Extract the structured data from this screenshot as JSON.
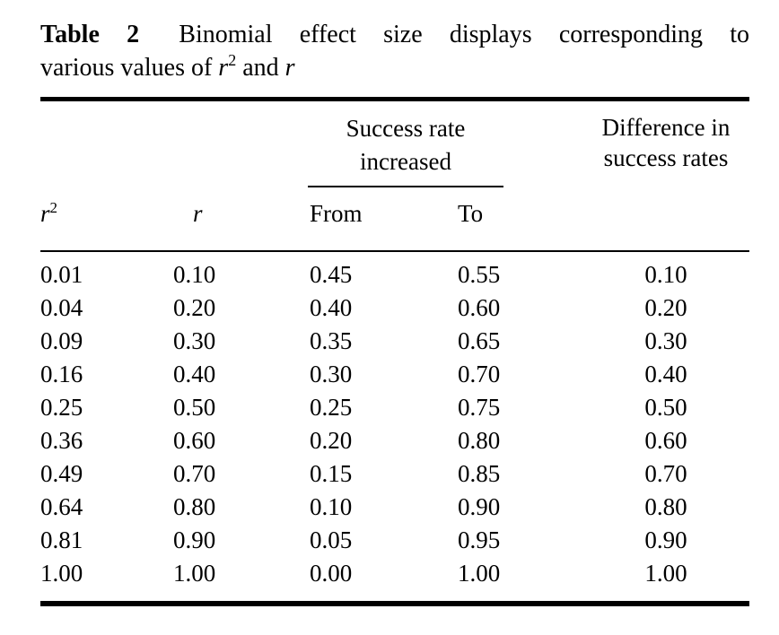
{
  "colors": {
    "background": "#ffffff",
    "text": "#000000",
    "rule": "#000000"
  },
  "caption": {
    "tag": "Table 2",
    "line1_rest": "Binomial effect size displays corresponding to",
    "line2": {
      "text1": "various values of",
      "var1": "r",
      "sup1": "2",
      "text2": "and",
      "var2": "r"
    }
  },
  "table": {
    "spanner_header": {
      "line1": "Success rate",
      "line2": "increased"
    },
    "diff_header": {
      "line1": "Difference in",
      "line2": "success rates"
    },
    "column_headers": {
      "r_squared": {
        "base": "r",
        "sup": "2"
      },
      "r": "r",
      "from": "From",
      "to": "To"
    },
    "rows": [
      [
        "0.01",
        "0.10",
        "0.45",
        "0.55",
        "0.10"
      ],
      [
        "0.04",
        "0.20",
        "0.40",
        "0.60",
        "0.20"
      ],
      [
        "0.09",
        "0.30",
        "0.35",
        "0.65",
        "0.30"
      ],
      [
        "0.16",
        "0.40",
        "0.30",
        "0.70",
        "0.40"
      ],
      [
        "0.25",
        "0.50",
        "0.25",
        "0.75",
        "0.50"
      ],
      [
        "0.36",
        "0.60",
        "0.20",
        "0.80",
        "0.60"
      ],
      [
        "0.49",
        "0.70",
        "0.15",
        "0.85",
        "0.70"
      ],
      [
        "0.64",
        "0.80",
        "0.10",
        "0.90",
        "0.80"
      ],
      [
        "0.81",
        "0.90",
        "0.05",
        "0.95",
        "0.90"
      ],
      [
        "1.00",
        "1.00",
        "0.00",
        "1.00",
        "1.00"
      ]
    ]
  }
}
